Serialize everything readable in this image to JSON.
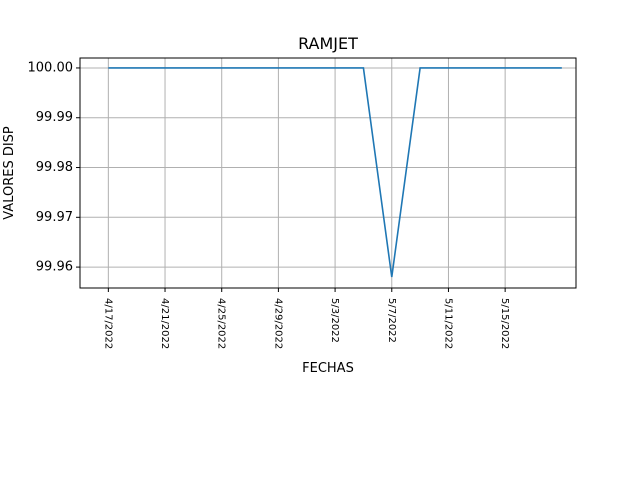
{
  "chart_data": {
    "type": "line",
    "title": "RAMJET",
    "xlabel": "FECHAS",
    "ylabel": "VALORES DISP",
    "x_type": "date",
    "x_ticks": [
      "4/17/2022",
      "4/21/2022",
      "4/25/2022",
      "4/29/2022",
      "5/3/2022",
      "5/7/2022",
      "5/11/2022",
      "5/15/2022"
    ],
    "y_ticks": [
      "99.96",
      "99.97",
      "99.98",
      "99.99",
      "100.00"
    ],
    "xlim": [
      "2022-04-15",
      "2022-05-20"
    ],
    "ylim": [
      99.9558,
      100.002
    ],
    "grid": true,
    "series": [
      {
        "color": "#1f77b4",
        "x": [
          "2022-04-17",
          "2022-05-05",
          "2022-05-07",
          "2022-05-09",
          "2022-05-19"
        ],
        "y": [
          100.0,
          100.0,
          99.958,
          100.0,
          100.0
        ]
      }
    ]
  }
}
